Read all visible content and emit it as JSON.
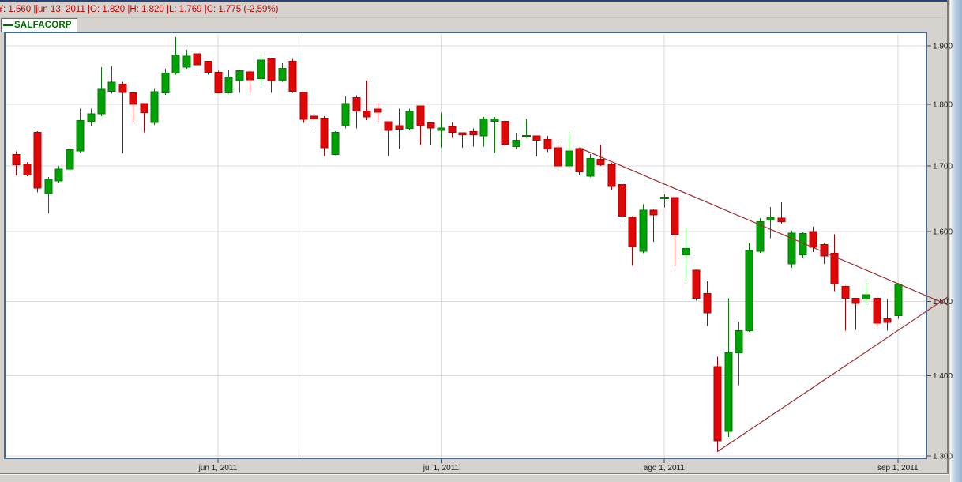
{
  "window": {
    "info_bar": {
      "text": "Y: 1.560 |jun 13, 2011 |O: 1.820 |H: 1.820 |L: 1.769 |C: 1.775 (-2,59%)",
      "y_value": "1.560",
      "date": "jun 13, 2011",
      "open": "1.820",
      "high": "1.820",
      "low": "1.769",
      "close": "1.775",
      "change_pct": "-2,59%"
    }
  },
  "legend": {
    "series_label": "SALFACORP",
    "series_color": "#007200"
  },
  "chart_data": {
    "type": "candlestick",
    "title": "SALFACORP",
    "ylabel": "price",
    "xlabel": "date",
    "y_axis": {
      "scale": "log",
      "range": [
        1.3,
        1.925
      ],
      "ticks": [
        {
          "value": 1.9,
          "label": "1.900"
        },
        {
          "value": 1.8,
          "label": "1.800"
        },
        {
          "value": 1.7,
          "label": "1.700"
        },
        {
          "value": 1.6,
          "label": "1.600"
        },
        {
          "value": 1.5,
          "label": "1.500"
        },
        {
          "value": 1.4,
          "label": "1.400"
        },
        {
          "value": 1.3,
          "label": "1.300"
        }
      ]
    },
    "x_axis": {
      "ticks": [
        {
          "index": 19,
          "label": "jun 1, 2011"
        },
        {
          "index": 40,
          "label": "jul 1, 2011"
        },
        {
          "index": 61,
          "label": "ago 1, 2011"
        },
        {
          "index": 83,
          "label": "sep 1, 2011"
        }
      ]
    },
    "selected_date": "jun 13, 2011",
    "crosshair_index": 27,
    "colors": {
      "up": "#00a105",
      "up_stroke": "#067806",
      "down": "#e00707",
      "down_stroke": "#b40000",
      "grid": "#dbdbdb",
      "crosshair": "#a8a8a8",
      "trendline": "#9e2b2b",
      "plot_border": "#46688f",
      "time_tick": "#2d4f8a",
      "price_tick": "#444444"
    },
    "trendlines": [
      {
        "name": "upper-resistance",
        "from": {
          "index": 53,
          "price": 1.729
        },
        "to": {
          "index": 87.7,
          "price": 1.495
        }
      },
      {
        "name": "lower-support",
        "from": {
          "index": 66,
          "price": 1.305
        },
        "to": {
          "index": 87.7,
          "price": 1.506
        }
      }
    ],
    "candles": [
      {
        "d": "may 5",
        "o": 1.718,
        "h": 1.723,
        "l": 1.685,
        "c": 1.702
      },
      {
        "d": "may 6",
        "o": 1.703,
        "h": 1.706,
        "l": 1.684,
        "c": 1.686
      },
      {
        "d": "may 9",
        "o": 1.754,
        "h": 1.756,
        "l": 1.659,
        "c": 1.666
      },
      {
        "d": "may 10",
        "o": 1.657,
        "h": 1.683,
        "l": 1.627,
        "c": 1.679
      },
      {
        "d": "may 11",
        "o": 1.677,
        "h": 1.7,
        "l": 1.674,
        "c": 1.695
      },
      {
        "d": "may 12",
        "o": 1.695,
        "h": 1.729,
        "l": 1.693,
        "c": 1.726
      },
      {
        "d": "may 13",
        "o": 1.724,
        "h": 1.793,
        "l": 1.721,
        "c": 1.773
      },
      {
        "d": "may 16",
        "o": 1.771,
        "h": 1.793,
        "l": 1.765,
        "c": 1.784
      },
      {
        "d": "may 17",
        "o": 1.784,
        "h": 1.863,
        "l": 1.78,
        "c": 1.825
      },
      {
        "d": "may 18",
        "o": 1.822,
        "h": 1.865,
        "l": 1.818,
        "c": 1.837
      },
      {
        "d": "may 19",
        "o": 1.834,
        "h": 1.838,
        "l": 1.72,
        "c": 1.82
      },
      {
        "d": "may 20",
        "o": 1.819,
        "h": 1.82,
        "l": 1.77,
        "c": 1.8
      },
      {
        "d": "may 23",
        "o": 1.801,
        "h": 1.802,
        "l": 1.754,
        "c": 1.786
      },
      {
        "d": "may 24",
        "o": 1.77,
        "h": 1.826,
        "l": 1.766,
        "c": 1.821
      },
      {
        "d": "may 25",
        "o": 1.819,
        "h": 1.86,
        "l": 1.816,
        "c": 1.853
      },
      {
        "d": "may 26",
        "o": 1.853,
        "h": 1.915,
        "l": 1.85,
        "c": 1.884
      },
      {
        "d": "may 27",
        "o": 1.863,
        "h": 1.893,
        "l": 1.86,
        "c": 1.882
      },
      {
        "d": "may 30",
        "o": 1.886,
        "h": 1.888,
        "l": 1.851,
        "c": 1.867
      },
      {
        "d": "may 31",
        "o": 1.873,
        "h": 1.874,
        "l": 1.85,
        "c": 1.854
      },
      {
        "d": "jun 1",
        "o": 1.854,
        "h": 1.857,
        "l": 1.818,
        "c": 1.819
      },
      {
        "d": "jun 2",
        "o": 1.819,
        "h": 1.859,
        "l": 1.818,
        "c": 1.846
      },
      {
        "d": "jun 3",
        "o": 1.84,
        "h": 1.859,
        "l": 1.819,
        "c": 1.857
      },
      {
        "d": "jun 6",
        "o": 1.855,
        "h": 1.856,
        "l": 1.819,
        "c": 1.841
      },
      {
        "d": "jun 7",
        "o": 1.843,
        "h": 1.884,
        "l": 1.832,
        "c": 1.875
      },
      {
        "d": "jun 8",
        "o": 1.877,
        "h": 1.879,
        "l": 1.819,
        "c": 1.84
      },
      {
        "d": "jun 9",
        "o": 1.84,
        "h": 1.87,
        "l": 1.838,
        "c": 1.861
      },
      {
        "d": "jun 10",
        "o": 1.873,
        "h": 1.877,
        "l": 1.819,
        "c": 1.822
      },
      {
        "d": "jun 13",
        "o": 1.82,
        "h": 1.82,
        "l": 1.769,
        "c": 1.775
      },
      {
        "d": "jun 14",
        "o": 1.78,
        "h": 1.816,
        "l": 1.757,
        "c": 1.776
      },
      {
        "d": "jun 15",
        "o": 1.777,
        "h": 1.78,
        "l": 1.716,
        "c": 1.729
      },
      {
        "d": "jun 16",
        "o": 1.718,
        "h": 1.756,
        "l": 1.717,
        "c": 1.754
      },
      {
        "d": "jun 17",
        "o": 1.765,
        "h": 1.813,
        "l": 1.76,
        "c": 1.801
      },
      {
        "d": "jun 20",
        "o": 1.811,
        "h": 1.815,
        "l": 1.76,
        "c": 1.789
      },
      {
        "d": "jun 21",
        "o": 1.789,
        "h": 1.84,
        "l": 1.774,
        "c": 1.779
      },
      {
        "d": "jun 22",
        "o": 1.792,
        "h": 1.802,
        "l": 1.771,
        "c": 1.787
      },
      {
        "d": "jun 23",
        "o": 1.771,
        "h": 1.772,
        "l": 1.716,
        "c": 1.757
      },
      {
        "d": "jun 24",
        "o": 1.765,
        "h": 1.793,
        "l": 1.727,
        "c": 1.759
      },
      {
        "d": "jun 28",
        "o": 1.76,
        "h": 1.793,
        "l": 1.757,
        "c": 1.788
      },
      {
        "d": "jun 29",
        "o": 1.797,
        "h": 1.798,
        "l": 1.734,
        "c": 1.765
      },
      {
        "d": "jun 30",
        "o": 1.769,
        "h": 1.77,
        "l": 1.733,
        "c": 1.761
      },
      {
        "d": "jul 1",
        "o": 1.757,
        "h": 1.786,
        "l": 1.729,
        "c": 1.761
      },
      {
        "d": "jul 4",
        "o": 1.763,
        "h": 1.77,
        "l": 1.745,
        "c": 1.754
      },
      {
        "d": "jul 5",
        "o": 1.753,
        "h": 1.753,
        "l": 1.729,
        "c": 1.75
      },
      {
        "d": "jul 6",
        "o": 1.755,
        "h": 1.76,
        "l": 1.731,
        "c": 1.75
      },
      {
        "d": "jul 7",
        "o": 1.748,
        "h": 1.779,
        "l": 1.731,
        "c": 1.776
      },
      {
        "d": "jul 8",
        "o": 1.772,
        "h": 1.779,
        "l": 1.721,
        "c": 1.776
      },
      {
        "d": "jul 11",
        "o": 1.772,
        "h": 1.773,
        "l": 1.731,
        "c": 1.735
      },
      {
        "d": "jul 12",
        "o": 1.731,
        "h": 1.753,
        "l": 1.727,
        "c": 1.741
      },
      {
        "d": "jul 13",
        "o": 1.747,
        "h": 1.776,
        "l": 1.745,
        "c": 1.748
      },
      {
        "d": "jul 14",
        "o": 1.748,
        "h": 1.749,
        "l": 1.715,
        "c": 1.741
      },
      {
        "d": "jul 15",
        "o": 1.742,
        "h": 1.748,
        "l": 1.722,
        "c": 1.727
      },
      {
        "d": "jul 18",
        "o": 1.729,
        "h": 1.734,
        "l": 1.698,
        "c": 1.7
      },
      {
        "d": "jul 19",
        "o": 1.7,
        "h": 1.754,
        "l": 1.697,
        "c": 1.724
      },
      {
        "d": "jul 20",
        "o": 1.728,
        "h": 1.729,
        "l": 1.685,
        "c": 1.691
      },
      {
        "d": "jul 21",
        "o": 1.684,
        "h": 1.719,
        "l": 1.682,
        "c": 1.712
      },
      {
        "d": "jul 22",
        "o": 1.711,
        "h": 1.734,
        "l": 1.7,
        "c": 1.702
      },
      {
        "d": "jul 25",
        "o": 1.702,
        "h": 1.705,
        "l": 1.663,
        "c": 1.668
      },
      {
        "d": "jul 26",
        "o": 1.671,
        "h": 1.674,
        "l": 1.61,
        "c": 1.623
      },
      {
        "d": "jul 27",
        "o": 1.621,
        "h": 1.623,
        "l": 1.55,
        "c": 1.578
      },
      {
        "d": "jul 28",
        "o": 1.571,
        "h": 1.641,
        "l": 1.568,
        "c": 1.632
      },
      {
        "d": "jul 29",
        "o": 1.632,
        "h": 1.634,
        "l": 1.585,
        "c": 1.625
      },
      {
        "d": "ago 1",
        "o": 1.65,
        "h": 1.656,
        "l": 1.636,
        "c": 1.651
      },
      {
        "d": "ago 2",
        "o": 1.651,
        "h": 1.652,
        "l": 1.55,
        "c": 1.596
      },
      {
        "d": "ago 3",
        "o": 1.566,
        "h": 1.606,
        "l": 1.528,
        "c": 1.575
      },
      {
        "d": "ago 4",
        "o": 1.544,
        "h": 1.545,
        "l": 1.501,
        "c": 1.504
      },
      {
        "d": "ago 5",
        "o": 1.511,
        "h": 1.528,
        "l": 1.466,
        "c": 1.484
      },
      {
        "d": "ago 8",
        "o": 1.412,
        "h": 1.425,
        "l": 1.305,
        "c": 1.318
      },
      {
        "d": "ago 9",
        "o": 1.33,
        "h": 1.504,
        "l": 1.323,
        "c": 1.43
      },
      {
        "d": "ago 10",
        "o": 1.43,
        "h": 1.472,
        "l": 1.388,
        "c": 1.46
      },
      {
        "d": "ago 11",
        "o": 1.46,
        "h": 1.583,
        "l": 1.458,
        "c": 1.572
      },
      {
        "d": "ago 12",
        "o": 1.571,
        "h": 1.62,
        "l": 1.569,
        "c": 1.615
      },
      {
        "d": "ago 16",
        "o": 1.617,
        "h": 1.637,
        "l": 1.59,
        "c": 1.621
      },
      {
        "d": "ago 17",
        "o": 1.62,
        "h": 1.644,
        "l": 1.612,
        "c": 1.615
      },
      {
        "d": "ago 18",
        "o": 1.553,
        "h": 1.601,
        "l": 1.547,
        "c": 1.598
      },
      {
        "d": "ago 19",
        "o": 1.566,
        "h": 1.599,
        "l": 1.562,
        "c": 1.597
      },
      {
        "d": "ago 22",
        "o": 1.6,
        "h": 1.607,
        "l": 1.57,
        "c": 1.577
      },
      {
        "d": "ago 23",
        "o": 1.581,
        "h": 1.583,
        "l": 1.553,
        "c": 1.564
      },
      {
        "d": "ago 24",
        "o": 1.568,
        "h": 1.596,
        "l": 1.514,
        "c": 1.524
      },
      {
        "d": "ago 25",
        "o": 1.521,
        "h": 1.522,
        "l": 1.46,
        "c": 1.504
      },
      {
        "d": "ago 26",
        "o": 1.504,
        "h": 1.505,
        "l": 1.461,
        "c": 1.497
      },
      {
        "d": "ago 29",
        "o": 1.503,
        "h": 1.526,
        "l": 1.495,
        "c": 1.509
      },
      {
        "d": "ago 30",
        "o": 1.504,
        "h": 1.506,
        "l": 1.465,
        "c": 1.47
      },
      {
        "d": "ago 31",
        "o": 1.476,
        "h": 1.503,
        "l": 1.46,
        "c": 1.471
      },
      {
        "d": "sep 1",
        "o": 1.48,
        "h": 1.526,
        "l": 1.476,
        "c": 1.524
      }
    ]
  }
}
